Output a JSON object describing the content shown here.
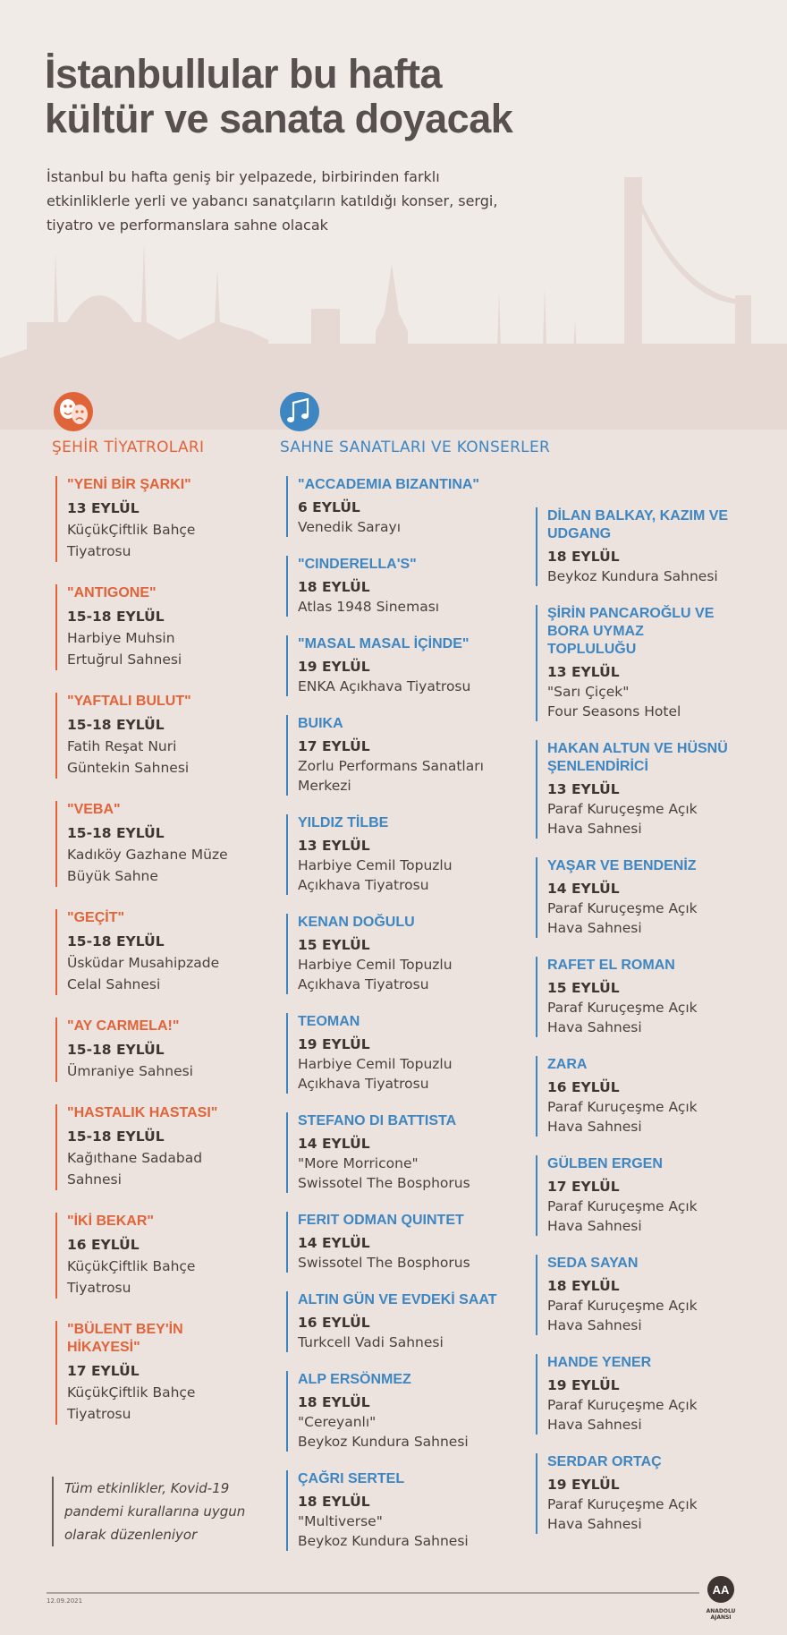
{
  "title": [
    "İstanbullular bu hafta",
    "kültür ve sanata doyacak"
  ],
  "subtitle": [
    "İstanbul bu hafta geniş bir yelpazede, birbirinden farklı",
    "etkinliklerle yerli ve yabancı sanatçıların katıldığı konser, sergi,",
    "tiyatro ve performanslara sahne olacak"
  ],
  "theatres": {
    "header": "ŞEHİR TİYATROLARI",
    "items": [
      {
        "name": [
          "\"YENİ BİR ŞARKI\""
        ],
        "date": "13 EYLÜL",
        "venue": [
          "KüçükÇiftlik Bahçe",
          "Tiyatrosu"
        ]
      },
      {
        "name": [
          "\"ANTIGONE\""
        ],
        "date": "15-18 EYLÜL",
        "venue": [
          "Harbiye Muhsin",
          "Ertuğrul Sahnesi"
        ]
      },
      {
        "name": [
          "\"YAFTALI BULUT\""
        ],
        "date": "15-18 EYLÜL",
        "venue": [
          "Fatih Reşat Nuri",
          "Güntekin Sahnesi"
        ]
      },
      {
        "name": [
          "\"VEBA\""
        ],
        "date": "15-18 EYLÜL",
        "venue": [
          "Kadıköy Gazhane Müze",
          "Büyük Sahne"
        ]
      },
      {
        "name": [
          "\"GEÇİT\""
        ],
        "date": "15-18 EYLÜL",
        "venue": [
          "Üsküdar Musahipzade",
          "Celal Sahnesi"
        ]
      },
      {
        "name": [
          "\"AY CARMELA!\""
        ],
        "date": "15-18 EYLÜL",
        "venue": [
          "Ümraniye Sahnesi"
        ]
      },
      {
        "name": [
          "\"HASTALIK HASTASI\""
        ],
        "date": "15-18 EYLÜL",
        "venue": [
          "Kağıthane Sadabad",
          "Sahnesi"
        ]
      },
      {
        "name": [
          "\"İKİ BEKAR\""
        ],
        "date": "16 EYLÜL",
        "venue": [
          "KüçükÇiftlik Bahçe",
          "Tiyatrosu"
        ]
      },
      {
        "name": [
          "\"BÜLENT BEY'İN",
          "HİKAYESİ\""
        ],
        "date": "17 EYLÜL",
        "venue": [
          "KüçükÇiftlik Bahçe",
          "Tiyatrosu"
        ]
      }
    ]
  },
  "music": {
    "header": "SAHNE SANATLARI VE KONSERLER",
    "column1": [
      {
        "name": [
          "\"ACCADEMIA BIZANTINA\""
        ],
        "date": "6 EYLÜL",
        "venue": [
          "Venedik Sarayı"
        ]
      },
      {
        "name": [
          "\"CINDERELLA'S\""
        ],
        "date": "18 EYLÜL",
        "venue": [
          "Atlas 1948 Sineması"
        ]
      },
      {
        "name": [
          "\"MASAL MASAL İÇİNDE\""
        ],
        "date": "19 EYLÜL",
        "venue": [
          "ENKA Açıkhava Tiyatrosu"
        ]
      },
      {
        "name": [
          "BUIKA"
        ],
        "date": "17 EYLÜL",
        "venue": [
          "Zorlu Performans Sanatları",
          "Merkezi"
        ]
      },
      {
        "name": [
          "YILDIZ TİLBE"
        ],
        "date": "13 EYLÜL",
        "venue": [
          "Harbiye Cemil Topuzlu",
          "Açıkhava Tiyatrosu"
        ]
      },
      {
        "name": [
          "KENAN DOĞULU"
        ],
        "date": "15 EYLÜL",
        "venue": [
          "Harbiye Cemil Topuzlu",
          "Açıkhava Tiyatrosu"
        ]
      },
      {
        "name": [
          "TEOMAN"
        ],
        "date": "19 EYLÜL",
        "venue": [
          "Harbiye Cemil Topuzlu",
          "Açıkhava Tiyatrosu"
        ]
      },
      {
        "name": [
          "STEFANO DI BATTISTA"
        ],
        "date": "14 EYLÜL",
        "venue": [
          "\"More Morricone\"",
          "Swissotel The Bosphorus"
        ]
      },
      {
        "name": [
          "FERIT ODMAN QUINTET"
        ],
        "date": "14 EYLÜL",
        "venue": [
          "Swissotel The Bosphorus"
        ]
      },
      {
        "name": [
          "ALTIN GÜN VE EVDEKİ SAAT"
        ],
        "date": "16 EYLÜL",
        "venue": [
          "Turkcell Vadi Sahnesi"
        ]
      },
      {
        "name": [
          "ALP ERSÖNMEZ"
        ],
        "date": "18 EYLÜL",
        "venue": [
          "\"Cereyanlı\"",
          "Beykoz Kundura Sahnesi"
        ]
      },
      {
        "name": [
          "ÇAĞRI SERTEL"
        ],
        "date": "18 EYLÜL",
        "venue": [
          "\"Multiverse\"",
          "Beykoz Kundura Sahnesi"
        ]
      }
    ],
    "column2": [
      {
        "name": [
          "DİLAN BALKAY, KAZIM VE",
          "UDGANG"
        ],
        "date": "18 EYLÜL",
        "venue": [
          "Beykoz Kundura Sahnesi"
        ]
      },
      {
        "name": [
          "ŞİRİN PANCAROĞLU VE",
          "BORA UYMAZ",
          "TOPLULUĞU"
        ],
        "date": "13 EYLÜL",
        "venue": [
          "\"Sarı Çiçek\"",
          "Four Seasons Hotel"
        ]
      },
      {
        "name": [
          "HAKAN ALTUN VE HÜSNÜ",
          "ŞENLENDİRİCİ"
        ],
        "date": "13 EYLÜL",
        "venue": [
          "Paraf Kuruçeşme Açık",
          "Hava Sahnesi"
        ]
      },
      {
        "name": [
          "YAŞAR VE BENDENİZ"
        ],
        "date": "14 EYLÜL",
        "venue": [
          "Paraf Kuruçeşme Açık",
          "Hava Sahnesi"
        ]
      },
      {
        "name": [
          "RAFET EL ROMAN"
        ],
        "date": "15 EYLÜL",
        "venue": [
          "Paraf Kuruçeşme Açık",
          "Hava Sahnesi"
        ]
      },
      {
        "name": [
          "ZARA"
        ],
        "date": "16 EYLÜL",
        "venue": [
          "Paraf Kuruçeşme Açık",
          "Hava Sahnesi"
        ]
      },
      {
        "name": [
          "GÜLBEN ERGEN"
        ],
        "date": "17 EYLÜL",
        "venue": [
          "Paraf Kuruçeşme Açık",
          "Hava Sahnesi"
        ]
      },
      {
        "name": [
          "SEDA SAYAN"
        ],
        "date": "18 EYLÜL",
        "venue": [
          "Paraf Kuruçeşme Açık",
          "Hava Sahnesi"
        ]
      },
      {
        "name": [
          "HANDE YENER"
        ],
        "date": "19 EYLÜL",
        "venue": [
          "Paraf Kuruçeşme Açık",
          "Hava Sahnesi"
        ]
      },
      {
        "name": [
          "SERDAR ORTAÇ"
        ],
        "date": "19 EYLÜL",
        "venue": [
          "Paraf Kuruçeşme Açık",
          "Hava Sahnesi"
        ]
      }
    ]
  },
  "note": [
    "Tüm etkinlikler, Kovid-19",
    "pandemi kurallarına uygun",
    "olarak düzenleniyor"
  ],
  "footer": {
    "date": "12.09.2021",
    "logo": "AA",
    "agency": "ANADOLU AJANSI"
  }
}
